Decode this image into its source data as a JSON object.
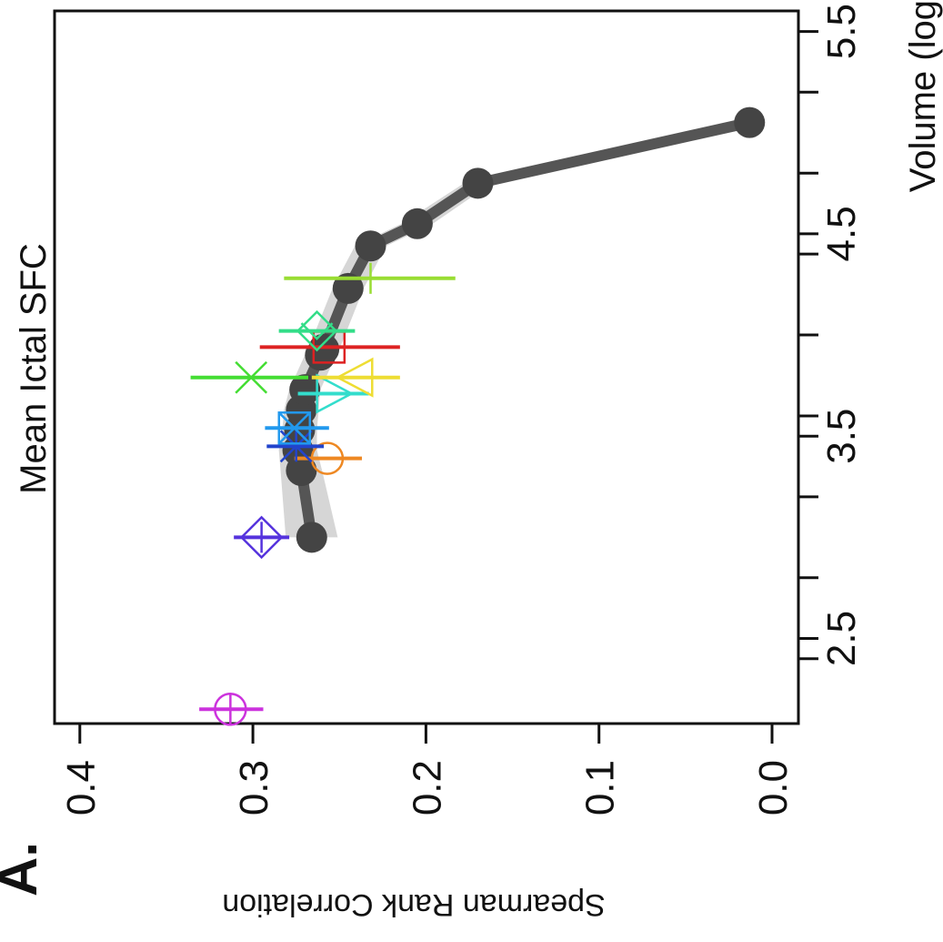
{
  "panel_label": "A.",
  "chart_data": {
    "type": "scatter",
    "title": "Mean Ictal SFC",
    "xlabel": "Volume (log",
    "ylabel": "Spearman Rank Correlation",
    "x_ticks": [
      "2.5",
      "3.5",
      "4.5",
      "5.5"
    ],
    "y_ticks": [
      "0.0",
      "0.1",
      "0.2",
      "0.3",
      "0.4"
    ],
    "x_tick_values": [
      2.5,
      3.5,
      4.5,
      5.5
    ],
    "y_tick_values": [
      0.0,
      0.1,
      0.2,
      0.3,
      0.4
    ],
    "x_minor_ticks": [
      2.0,
      2.4,
      2.8,
      3.2,
      3.6,
      4.0,
      4.4,
      4.8,
      5.2
    ],
    "xlim": [
      2.5,
      5.7
    ],
    "ylim": [
      -0.015,
      0.415
    ],
    "rotation": "rotated 90 degrees counter-clockwise",
    "smooth_band_color": "#d6d6d6",
    "series": [
      {
        "kind": "line",
        "color": "#555555",
        "marker": "filled-circle",
        "x": [
          3.0,
          3.33,
          3.43,
          3.53,
          3.63,
          3.73,
          3.9,
          3.93,
          4.23,
          4.44,
          4.55,
          4.75,
          5.05
        ],
        "y": [
          0.266,
          0.272,
          0.274,
          0.273,
          0.272,
          0.27,
          0.261,
          0.259,
          0.245,
          0.232,
          0.205,
          0.17,
          0.013
        ],
        "band_low": [
          0.251,
          0.26,
          0.263,
          0.263,
          0.262,
          0.261,
          0.252,
          0.25,
          0.236,
          0.223,
          0.196,
          0.162,
          0.006
        ],
        "band_high": [
          0.281,
          0.284,
          0.285,
          0.283,
          0.282,
          0.279,
          0.27,
          0.268,
          0.254,
          0.241,
          0.214,
          0.178,
          0.02
        ]
      },
      {
        "kind": "errorbar",
        "marker": "circle-plus",
        "color": "#cc33dd",
        "x": 2.15,
        "y": 0.313,
        "xerr": [
          0.294,
          0.331
        ]
      },
      {
        "kind": "errorbar",
        "marker": "diamond-plus",
        "color": "#5533dd",
        "x": 3.0,
        "y": 0.295,
        "xerr": [
          0.279,
          0.311
        ]
      },
      {
        "kind": "errorbar",
        "marker": "circle",
        "color": "#ee8822",
        "x": 3.39,
        "y": 0.257,
        "xerr": [
          0.237,
          0.276
        ]
      },
      {
        "kind": "errorbar",
        "marker": "asterisk",
        "color": "#2244cc",
        "x": 3.45,
        "y": 0.275,
        "xerr": [
          0.259,
          0.292
        ]
      },
      {
        "kind": "errorbar",
        "marker": "square-x",
        "color": "#2299ee",
        "x": 3.54,
        "y": 0.276,
        "xerr": [
          0.256,
          0.293
        ]
      },
      {
        "kind": "errorbar",
        "marker": "triangle-right",
        "color": "#33ddcc",
        "x": 3.71,
        "y": 0.254,
        "xerr": [
          0.233,
          0.274
        ]
      },
      {
        "kind": "errorbar",
        "marker": "triangle-left",
        "color": "#eedd33",
        "x": 3.79,
        "y": 0.24,
        "xerr": [
          0.215,
          0.266
        ]
      },
      {
        "kind": "errorbar",
        "marker": "x",
        "color": "#44dd33",
        "x": 3.79,
        "y": 0.301,
        "xerr": [
          0.268,
          0.336
        ]
      },
      {
        "kind": "errorbar",
        "marker": "square",
        "color": "#dd2222",
        "x": 3.94,
        "y": 0.256,
        "xerr": [
          0.215,
          0.296
        ]
      },
      {
        "kind": "errorbar",
        "marker": "diamond-v",
        "color": "#33dd88",
        "x": 4.02,
        "y": 0.263,
        "xerr": [
          0.241,
          0.285
        ]
      },
      {
        "kind": "errorbar",
        "marker": "plus",
        "color": "#99dd33",
        "x": 4.28,
        "y": 0.232,
        "xerr": [
          0.183,
          0.282
        ]
      }
    ]
  }
}
